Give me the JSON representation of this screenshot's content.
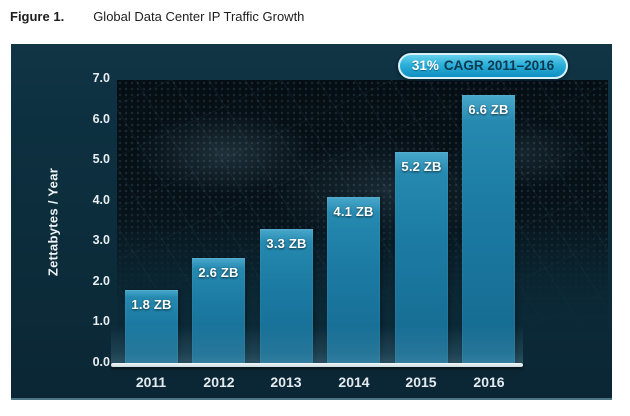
{
  "figure": {
    "label": "Figure 1.",
    "title": "Global Data Center IP Traffic Growth"
  },
  "badge": {
    "percent": "31%",
    "text": "CAGR 2011–2016"
  },
  "chart_data": {
    "type": "bar",
    "title": "Global Data Center IP Traffic Growth",
    "categories": [
      "2011",
      "2012",
      "2013",
      "2014",
      "2015",
      "2016"
    ],
    "values": [
      1.8,
      2.6,
      3.3,
      4.1,
      5.2,
      6.6
    ],
    "bar_labels": [
      "1.8 ZB",
      "2.6 ZB",
      "3.3 ZB",
      "4.1 ZB",
      "5.2 ZB",
      "6.6 ZB"
    ],
    "xlabel": "",
    "ylabel": "Zettabytes / Year",
    "ylim": [
      0,
      7
    ],
    "ytick_labels": [
      "0.0",
      "1.0",
      "2.0",
      "3.0",
      "4.0",
      "5.0",
      "6.0",
      "7.0"
    ],
    "grid": false,
    "legend": "none",
    "annotation": "31% CAGR 2011–2016",
    "colors": {
      "bar": "#1c7ba3",
      "panel_background": "#0d2e3c",
      "plot_backdrop": "#0a161e",
      "badge_fill": "#18a7d8",
      "axis_line": "#e2eaee",
      "label_text": "#ffffff"
    }
  }
}
